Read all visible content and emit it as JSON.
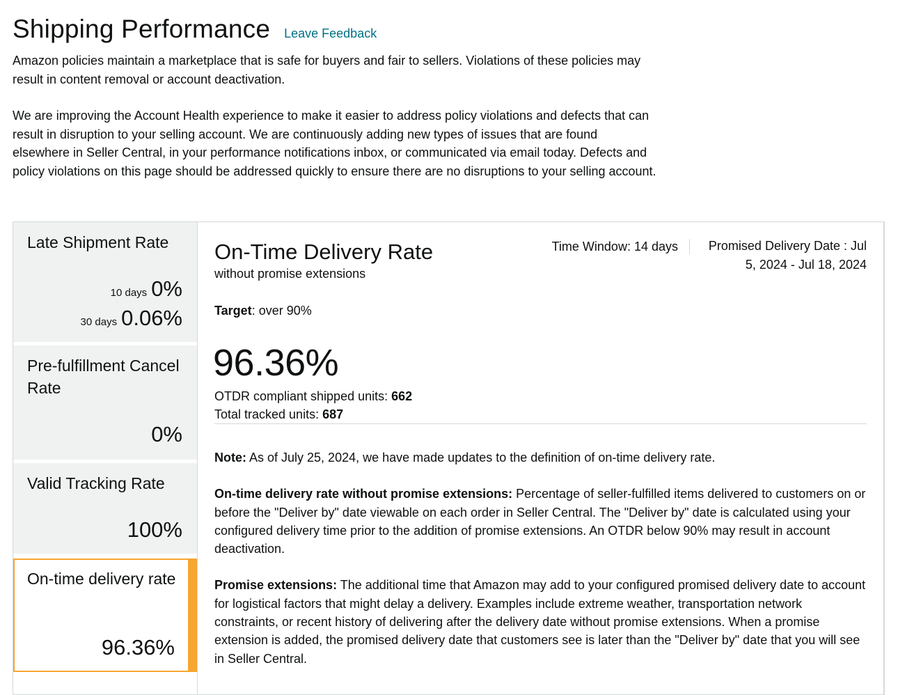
{
  "header": {
    "title": "Shipping Performance",
    "feedback_link": "Leave Feedback",
    "intro_1": "Amazon policies maintain a marketplace that is safe for buyers and fair to sellers. Violations of these policies may result in content removal or account deactivation.",
    "intro_2": "We are improving the Account Health experience to make it easier to address policy violations and defects that can result in disruption to your selling account. We are continuously adding new types of issues that are found elsewhere in Seller Central, in your performance notifications inbox, or communicated via email today. Defects and policy violations on this page should be addressed quickly to ensure there are no disruptions to your selling account."
  },
  "sidebar": {
    "late_shipment": {
      "title": "Late Shipment Rate",
      "row_10_label": "10 days",
      "row_10_value": "0%",
      "row_30_label": "30 days",
      "row_30_value": "0.06%"
    },
    "pre_fulfillment": {
      "title": "Pre-fulfillment Cancel Rate",
      "value": "0%"
    },
    "valid_tracking": {
      "title": "Valid Tracking Rate",
      "value": "100%"
    },
    "on_time_delivery": {
      "title": "On-time delivery rate",
      "value": "96.36%",
      "selected": true
    }
  },
  "detail": {
    "title": "On-Time Delivery Rate",
    "subtitle": "without promise extensions",
    "time_window": "Time Window: 14 days",
    "promised_delivery_date": "Promised Delivery Date : Jul 5, 2024 - Jul 18, 2024",
    "target_label": "Target",
    "target_value": ": over 90%",
    "rate": "96.36%",
    "compliant_units_label": "OTDR compliant shipped units: ",
    "compliant_units_value": "662",
    "tracked_units_label": "Total tracked units: ",
    "tracked_units_value": "687",
    "note_label": "Note:",
    "note_text": " As of July 25, 2024, we have made updates to the definition of on-time delivery rate.",
    "definition_label": "On-time delivery rate without promise extensions:",
    "definition_text": " Percentage of seller-fulfilled items delivered to customers on or before the \"Deliver by\" date viewable on each order in Seller Central. The \"Deliver by\" date is calculated using your configured delivery time prior to the addition of promise extensions. An OTDR below 90% may result in account deactivation.",
    "extensions_label": "Promise extensions:",
    "extensions_text": " The additional time that Amazon may add to your configured promised delivery date to account for logistical factors that might delay a delivery. Examples include extreme weather, transportation network constraints, or recent history of delivering after the delivery date without promise extensions. When a promise extension is added, the promised delivery date that customers see is later than the \"Deliver by\" date that you will see in Seller Central."
  },
  "colors": {
    "link": "#007185",
    "tile_background": "#f0f2f2",
    "selected_accent": "#f6a631",
    "border": "#d5d9d9"
  }
}
